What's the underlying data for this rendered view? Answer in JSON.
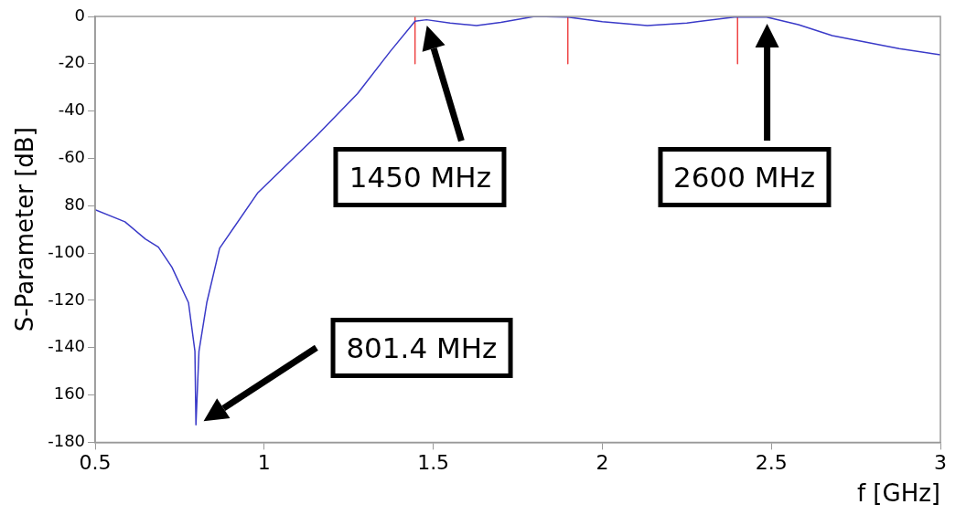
{
  "chart_data": {
    "type": "line",
    "xlabel": "f [GHz]",
    "ylabel": "S-Parameter [dB]",
    "xlim": [
      0.5,
      3
    ],
    "xticks": [
      0.5,
      1,
      1.5,
      2,
      2.5,
      3
    ],
    "ylim": [
      -180,
      0
    ],
    "yticks": [
      0,
      -20,
      -40,
      -60,
      {
        "value": -80,
        "label": "80"
      },
      -100,
      -120,
      -140,
      {
        "value": -160,
        "label": "160"
      },
      -180
    ],
    "grid": false,
    "legend": false,
    "marker": "none",
    "line_style": "solid",
    "series": [
      {
        "color": "#3a3ac8",
        "x": [
          0.5,
          0.588,
          0.648,
          0.687,
          0.727,
          0.776,
          0.795,
          0.798,
          0.807,
          0.83,
          0.868,
          0.98,
          1.156,
          1.276,
          1.372,
          1.446,
          1.48,
          1.55,
          1.628,
          1.7,
          1.8,
          1.898,
          2.0,
          2.133,
          2.25,
          2.39,
          2.486,
          2.58,
          2.68,
          2.878,
          3.0
        ],
        "values": [
          -81.7,
          -86.8,
          -94,
          -97.5,
          -106,
          -121,
          -141.5,
          -172.6,
          -141.5,
          -121,
          -98,
          -74.7,
          -50.3,
          -32.6,
          -14.9,
          -2,
          -1.4,
          -2.8,
          -3.9,
          -2.5,
          0,
          -0.3,
          -2.2,
          -3.9,
          -2.8,
          -0.3,
          -0.3,
          -3.5,
          -8.1,
          -13.6,
          -16.2
        ]
      },
      {
        "color": "#ee4444",
        "x": [
          1.446,
          1.446
        ],
        "values": [
          0,
          -20
        ]
      },
      {
        "color": "#ee4444",
        "x": [
          1.898,
          1.898
        ],
        "values": [
          0,
          -20
        ]
      },
      {
        "color": "#ee4444",
        "x": [
          2.4,
          2.4
        ],
        "values": [
          0,
          -20
        ]
      }
    ],
    "annotations": [
      "1450 MHz",
      "2600 MHz",
      "801.4 MHz"
    ]
  }
}
